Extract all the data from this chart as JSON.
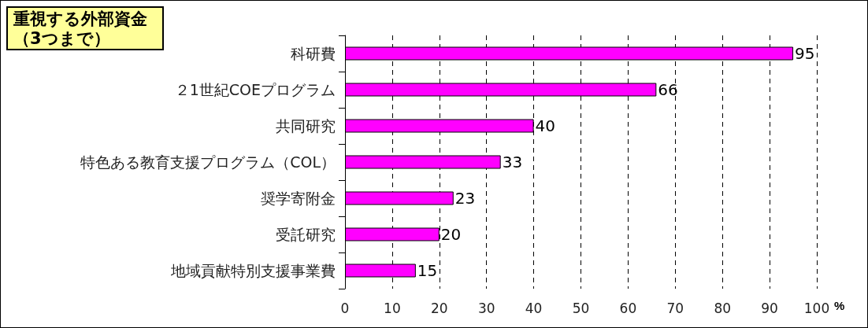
{
  "chart_data": {
    "type": "bar",
    "orientation": "horizontal",
    "title": "重視する外部資金",
    "subtitle": "（3つまで）",
    "xlabel": "%",
    "categories": [
      "科研費",
      "２1世紀COEプログラム",
      "共同研究",
      "特色ある教育支援プログラム（COL）",
      "奨学寄附金",
      "受託研究",
      "地域貢献特別支援事業費"
    ],
    "values": [
      95,
      66,
      40,
      33,
      23,
      20,
      15
    ],
    "color": "#ff00ff",
    "xlim": [
      0,
      100
    ],
    "xticks": [
      0,
      10,
      20,
      30,
      40,
      50,
      60,
      70,
      80,
      90,
      100
    ],
    "grid": "x",
    "data_labels": true
  }
}
